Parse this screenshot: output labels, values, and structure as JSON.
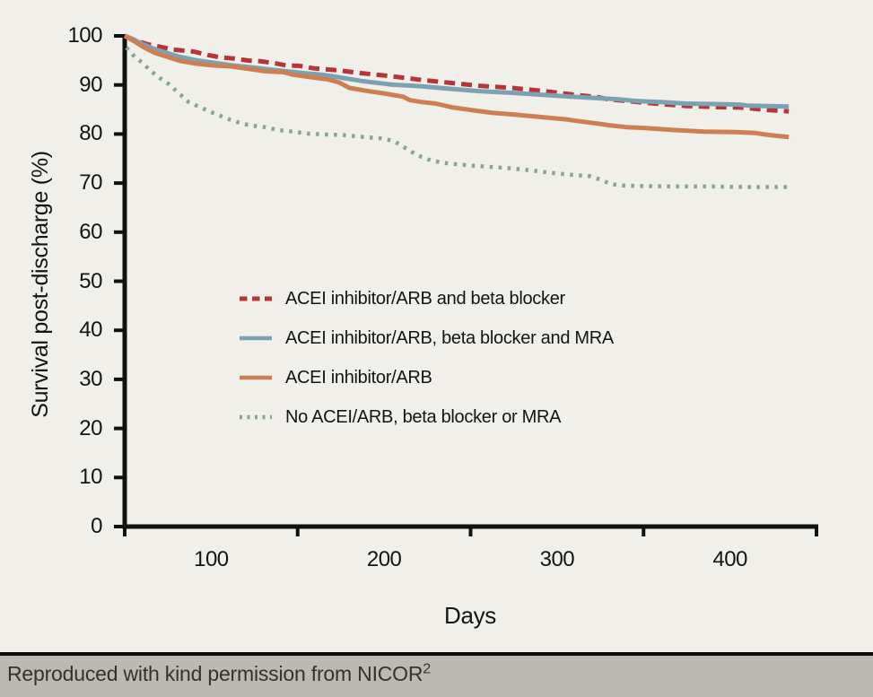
{
  "page": {
    "background_color": "#f0efe9",
    "footer_background_color": "#bcb8b2",
    "footer_rule_color": "#0c0c0c"
  },
  "chart_data": {
    "type": "line",
    "title": "",
    "xlabel": "Days",
    "ylabel": "Survival post-discharge (%)",
    "xlim": [
      50,
      450
    ],
    "ylim": [
      0,
      100
    ],
    "grid": false,
    "legend_position": "inside center-left",
    "x_axis": {
      "tick_values": [
        50,
        150,
        250,
        350,
        450
      ],
      "label_values": [
        100,
        200,
        300,
        400
      ]
    },
    "y_axis": {
      "tick_values": [
        0,
        10,
        20,
        30,
        40,
        50,
        60,
        70,
        80,
        90,
        100
      ],
      "label_values": [
        0,
        10,
        20,
        30,
        40,
        50,
        60,
        70,
        80,
        90,
        100
      ]
    },
    "series": [
      {
        "name": "ACEI inhibitor/ARB and beta blocker",
        "color": "#b5353b",
        "line_style": "dashed",
        "points": [
          [
            50,
            100
          ],
          [
            57,
            99.0
          ],
          [
            63,
            98.3
          ],
          [
            70,
            97.8
          ],
          [
            78,
            97.2
          ],
          [
            90,
            96.8
          ],
          [
            98,
            96.1
          ],
          [
            106,
            95.6
          ],
          [
            113,
            95.4
          ],
          [
            121,
            95.0
          ],
          [
            129,
            94.8
          ],
          [
            137,
            94.4
          ],
          [
            143,
            94.0
          ],
          [
            151,
            93.9
          ],
          [
            159,
            93.4
          ],
          [
            166,
            93.2
          ],
          [
            173,
            93.0
          ],
          [
            187,
            92.4
          ],
          [
            204,
            91.8
          ],
          [
            222,
            91.0
          ],
          [
            239,
            90.4
          ],
          [
            256,
            89.8
          ],
          [
            274,
            89.4
          ],
          [
            291,
            88.8
          ],
          [
            308,
            88.1
          ],
          [
            324,
            87.5
          ],
          [
            329,
            87.1
          ],
          [
            344,
            86.6
          ],
          [
            360,
            86.1
          ],
          [
            375,
            85.7
          ],
          [
            391,
            85.5
          ],
          [
            406,
            85.4
          ],
          [
            422,
            84.9
          ],
          [
            434,
            84.6
          ]
        ]
      },
      {
        "name": "ACEI inhibitor/ARB, beta blocker and MRA",
        "color": "#7aa2b2",
        "line_style": "solid",
        "points": [
          [
            50,
            100
          ],
          [
            55,
            99.3
          ],
          [
            60,
            98.4
          ],
          [
            66,
            97.5
          ],
          [
            71,
            96.9
          ],
          [
            81,
            95.8
          ],
          [
            92,
            95.0
          ],
          [
            102,
            94.5
          ],
          [
            112,
            94.0
          ],
          [
            123,
            93.6
          ],
          [
            133,
            93.2
          ],
          [
            143,
            92.8
          ],
          [
            154,
            92.4
          ],
          [
            164,
            92.1
          ],
          [
            173,
            91.6
          ],
          [
            187,
            90.8
          ],
          [
            204,
            90.1
          ],
          [
            222,
            89.7
          ],
          [
            239,
            89.2
          ],
          [
            256,
            88.7
          ],
          [
            274,
            88.4
          ],
          [
            291,
            88.0
          ],
          [
            308,
            87.6
          ],
          [
            324,
            87.3
          ],
          [
            335,
            87.1
          ],
          [
            344,
            86.8
          ],
          [
            353,
            86.6
          ],
          [
            360,
            86.5
          ],
          [
            375,
            86.2
          ],
          [
            391,
            86.1
          ],
          [
            406,
            86.0
          ],
          [
            410,
            85.8
          ],
          [
            422,
            85.7
          ],
          [
            434,
            85.6
          ]
        ]
      },
      {
        "name": "ACEI inhibitor/ARB",
        "color": "#cd7f52",
        "line_style": "solid",
        "points": [
          [
            50,
            100
          ],
          [
            56,
            98.8
          ],
          [
            61,
            97.7
          ],
          [
            67,
            96.6
          ],
          [
            74,
            95.8
          ],
          [
            82,
            94.9
          ],
          [
            90,
            94.4
          ],
          [
            100,
            94.0
          ],
          [
            111,
            93.8
          ],
          [
            121,
            93.3
          ],
          [
            131,
            92.8
          ],
          [
            142,
            92.6
          ],
          [
            147,
            92.1
          ],
          [
            157,
            91.6
          ],
          [
            168,
            91.1
          ],
          [
            174,
            90.5
          ],
          [
            180,
            89.4
          ],
          [
            190,
            88.8
          ],
          [
            201,
            88.2
          ],
          [
            211,
            87.6
          ],
          [
            215,
            86.9
          ],
          [
            222,
            86.5
          ],
          [
            230,
            86.2
          ],
          [
            240,
            85.4
          ],
          [
            252,
            84.8
          ],
          [
            263,
            84.3
          ],
          [
            274,
            84.0
          ],
          [
            284,
            83.7
          ],
          [
            295,
            83.3
          ],
          [
            305,
            83.0
          ],
          [
            315,
            82.5
          ],
          [
            324,
            82.1
          ],
          [
            330,
            81.8
          ],
          [
            340,
            81.4
          ],
          [
            351,
            81.2
          ],
          [
            368,
            80.8
          ],
          [
            385,
            80.5
          ],
          [
            403,
            80.4
          ],
          [
            415,
            80.2
          ],
          [
            420,
            79.9
          ],
          [
            428,
            79.6
          ],
          [
            434,
            79.4
          ]
        ]
      },
      {
        "name": "No ACEI/ARB, beta blocker or MRA",
        "color": "#85a88a",
        "line_style": "dotted",
        "points": [
          [
            51,
            97.6
          ],
          [
            53,
            96.9
          ],
          [
            56,
            95.6
          ],
          [
            60,
            94.6
          ],
          [
            64,
            93.2
          ],
          [
            69,
            91.7
          ],
          [
            75,
            90.3
          ],
          [
            81,
            88.4
          ],
          [
            87,
            86.5
          ],
          [
            94,
            85.4
          ],
          [
            99,
            84.6
          ],
          [
            104,
            83.9
          ],
          [
            111,
            82.9
          ],
          [
            118,
            82.1
          ],
          [
            124,
            81.7
          ],
          [
            131,
            81.4
          ],
          [
            139,
            80.8
          ],
          [
            147,
            80.5
          ],
          [
            156,
            80.1
          ],
          [
            166,
            79.9
          ],
          [
            176,
            79.8
          ],
          [
            188,
            79.4
          ],
          [
            199,
            79.1
          ],
          [
            206,
            78.5
          ],
          [
            212,
            77.2
          ],
          [
            219,
            75.7
          ],
          [
            227,
            74.6
          ],
          [
            237,
            74.0
          ],
          [
            249,
            73.6
          ],
          [
            261,
            73.3
          ],
          [
            274,
            73.0
          ],
          [
            287,
            72.5
          ],
          [
            299,
            72.0
          ],
          [
            311,
            71.6
          ],
          [
            319,
            71.4
          ],
          [
            326,
            70.6
          ],
          [
            331,
            69.8
          ],
          [
            338,
            69.5
          ],
          [
            350,
            69.4
          ],
          [
            368,
            69.3
          ],
          [
            390,
            69.3
          ],
          [
            410,
            69.2
          ],
          [
            434,
            69.2
          ]
        ]
      }
    ]
  },
  "footer": {
    "text": "Reproduced with kind permission from NICOR",
    "superscript": "2"
  }
}
